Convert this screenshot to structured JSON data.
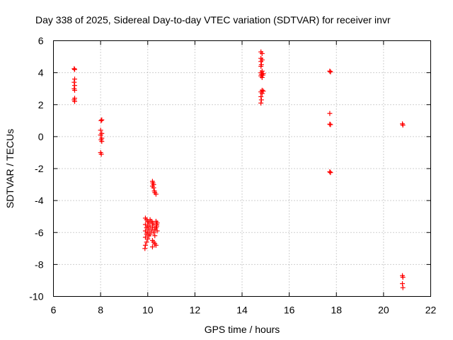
{
  "chart_data": {
    "type": "scatter",
    "title": "Day 338 of 2025, Sidereal Day-to-day VTEC variation (SDTVAR) for receiver invr",
    "xlabel": "GPS time / hours",
    "ylabel": "SDTVAR / TECUs",
    "xlim": [
      6,
      22
    ],
    "ylim": [
      -10,
      6
    ],
    "xticks": [
      6,
      8,
      10,
      12,
      14,
      16,
      18,
      20,
      22
    ],
    "yticks": [
      -10,
      -8,
      -6,
      -4,
      -2,
      0,
      2,
      4,
      6
    ],
    "grid": true,
    "marker": "+",
    "color": "#ff0000",
    "series": [
      {
        "name": "SDTVAR",
        "points": [
          [
            6.88,
            4.25
          ],
          [
            6.9,
            4.2
          ],
          [
            6.9,
            3.6
          ],
          [
            6.88,
            3.4
          ],
          [
            6.9,
            3.2
          ],
          [
            6.88,
            3.0
          ],
          [
            6.9,
            2.9
          ],
          [
            6.9,
            2.4
          ],
          [
            6.88,
            2.3
          ],
          [
            6.9,
            2.2
          ],
          [
            8.05,
            1.05
          ],
          [
            8.02,
            1.0
          ],
          [
            8.0,
            0.4
          ],
          [
            8.05,
            0.2
          ],
          [
            8.0,
            0.1
          ],
          [
            8.05,
            -0.1
          ],
          [
            8.02,
            -0.2
          ],
          [
            8.05,
            -0.3
          ],
          [
            8.0,
            -1.0
          ],
          [
            8.03,
            -1.1
          ],
          [
            9.9,
            -5.1
          ],
          [
            9.95,
            -5.2
          ],
          [
            10.0,
            -5.3
          ],
          [
            10.05,
            -5.4
          ],
          [
            9.9,
            -5.5
          ],
          [
            10.0,
            -5.6
          ],
          [
            9.95,
            -5.7
          ],
          [
            10.05,
            -5.8
          ],
          [
            9.9,
            -5.9
          ],
          [
            10.0,
            -6.0
          ],
          [
            9.95,
            -6.1
          ],
          [
            10.05,
            -6.2
          ],
          [
            9.9,
            -6.3
          ],
          [
            10.0,
            -6.4
          ],
          [
            9.95,
            -6.6
          ],
          [
            9.9,
            -6.8
          ],
          [
            9.88,
            -7.0
          ],
          [
            10.1,
            -5.2
          ],
          [
            10.15,
            -5.3
          ],
          [
            10.2,
            -5.4
          ],
          [
            10.25,
            -5.5
          ],
          [
            10.1,
            -5.6
          ],
          [
            10.2,
            -5.7
          ],
          [
            10.3,
            -5.8
          ],
          [
            10.15,
            -5.9
          ],
          [
            10.25,
            -6.0
          ],
          [
            10.1,
            -6.1
          ],
          [
            10.3,
            -6.2
          ],
          [
            10.2,
            -6.5
          ],
          [
            10.25,
            -6.6
          ],
          [
            10.3,
            -6.7
          ],
          [
            10.35,
            -6.8
          ],
          [
            10.2,
            -6.9
          ],
          [
            10.35,
            -5.3
          ],
          [
            10.38,
            -5.5
          ],
          [
            10.35,
            -5.7
          ],
          [
            10.4,
            -5.9
          ],
          [
            10.38,
            -5.6
          ],
          [
            10.4,
            -5.4
          ],
          [
            10.2,
            -2.8
          ],
          [
            10.22,
            -2.9
          ],
          [
            10.25,
            -3.0
          ],
          [
            10.2,
            -3.1
          ],
          [
            10.25,
            -3.2
          ],
          [
            10.28,
            -3.4
          ],
          [
            10.3,
            -3.5
          ],
          [
            10.35,
            -3.6
          ],
          [
            14.8,
            5.3
          ],
          [
            14.85,
            5.2
          ],
          [
            14.8,
            4.9
          ],
          [
            14.85,
            4.8
          ],
          [
            14.8,
            4.7
          ],
          [
            14.82,
            4.5
          ],
          [
            14.8,
            4.4
          ],
          [
            14.85,
            4.1
          ],
          [
            14.8,
            4.0
          ],
          [
            14.9,
            3.95
          ],
          [
            14.82,
            3.9
          ],
          [
            14.88,
            3.85
          ],
          [
            14.8,
            3.8
          ],
          [
            14.85,
            3.7
          ],
          [
            14.85,
            2.9
          ],
          [
            14.9,
            2.85
          ],
          [
            14.8,
            2.8
          ],
          [
            14.85,
            2.7
          ],
          [
            14.8,
            2.5
          ],
          [
            14.82,
            2.3
          ],
          [
            14.8,
            2.1
          ],
          [
            17.72,
            4.1
          ],
          [
            17.75,
            4.05
          ],
          [
            17.72,
            1.45
          ],
          [
            17.72,
            0.78
          ],
          [
            17.75,
            0.75
          ],
          [
            17.72,
            -2.2
          ],
          [
            17.75,
            -2.25
          ],
          [
            20.8,
            0.8
          ],
          [
            20.82,
            0.72
          ],
          [
            20.8,
            -8.7
          ],
          [
            20.82,
            -8.8
          ],
          [
            20.8,
            -9.2
          ],
          [
            20.82,
            -9.45
          ]
        ]
      }
    ]
  }
}
